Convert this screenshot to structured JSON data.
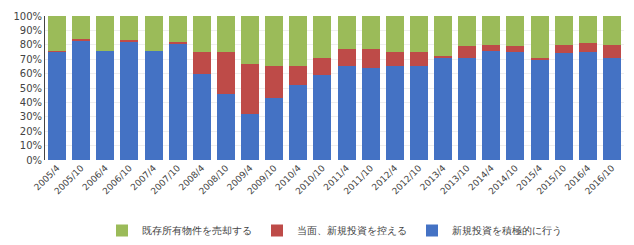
{
  "chart_data": {
    "type": "bar",
    "stacked": true,
    "categories": [
      "2005/4",
      "2005/10",
      "2006/4",
      "2006/10",
      "2007/4",
      "2007/10",
      "2008/4",
      "2008/10",
      "2009/4",
      "2009/10",
      "2010/4",
      "2010/10",
      "2011/4",
      "2011/10",
      "2012/4",
      "2012/10",
      "2013/4",
      "2013/10",
      "2014/4",
      "2014/10",
      "2015/4",
      "2015/10",
      "2016/4",
      "2016/10"
    ],
    "series": [
      {
        "name": "新規投資を積極的に行う",
        "color": "#4472C4",
        "values": [
          75,
          83,
          76,
          82,
          76,
          81,
          60,
          46,
          32,
          43,
          52,
          59,
          65,
          64,
          65,
          65,
          71,
          71,
          76,
          75,
          70,
          74,
          75,
          71
        ]
      },
      {
        "name": "当面、新規投資を控える",
        "color": "#BE4B48",
        "values": [
          1,
          1,
          0,
          1,
          0,
          1,
          15,
          29,
          35,
          22,
          13,
          12,
          12,
          13,
          10,
          10,
          1,
          8,
          4,
          4,
          1,
          6,
          6,
          9
        ]
      },
      {
        "name": "既存所有物件を売却する",
        "color": "#9BBB59",
        "values": [
          24,
          16,
          24,
          17,
          24,
          18,
          25,
          25,
          33,
          35,
          35,
          29,
          23,
          23,
          25,
          25,
          28,
          21,
          20,
          21,
          29,
          20,
          19,
          20
        ]
      }
    ],
    "ylim": [
      0,
      100
    ],
    "yticks": [
      {
        "value": 0,
        "label": "0%"
      },
      {
        "value": 10,
        "label": "10%"
      },
      {
        "value": 20,
        "label": "20%"
      },
      {
        "value": 30,
        "label": "30%"
      },
      {
        "value": 40,
        "label": "40%"
      },
      {
        "value": 50,
        "label": "50%"
      },
      {
        "value": 60,
        "label": "60%"
      },
      {
        "value": 70,
        "label": "70%"
      },
      {
        "value": 80,
        "label": "80%"
      },
      {
        "value": 90,
        "label": "90%"
      },
      {
        "value": 100,
        "label": "100%"
      }
    ],
    "grid": true,
    "legend": "bottom"
  }
}
